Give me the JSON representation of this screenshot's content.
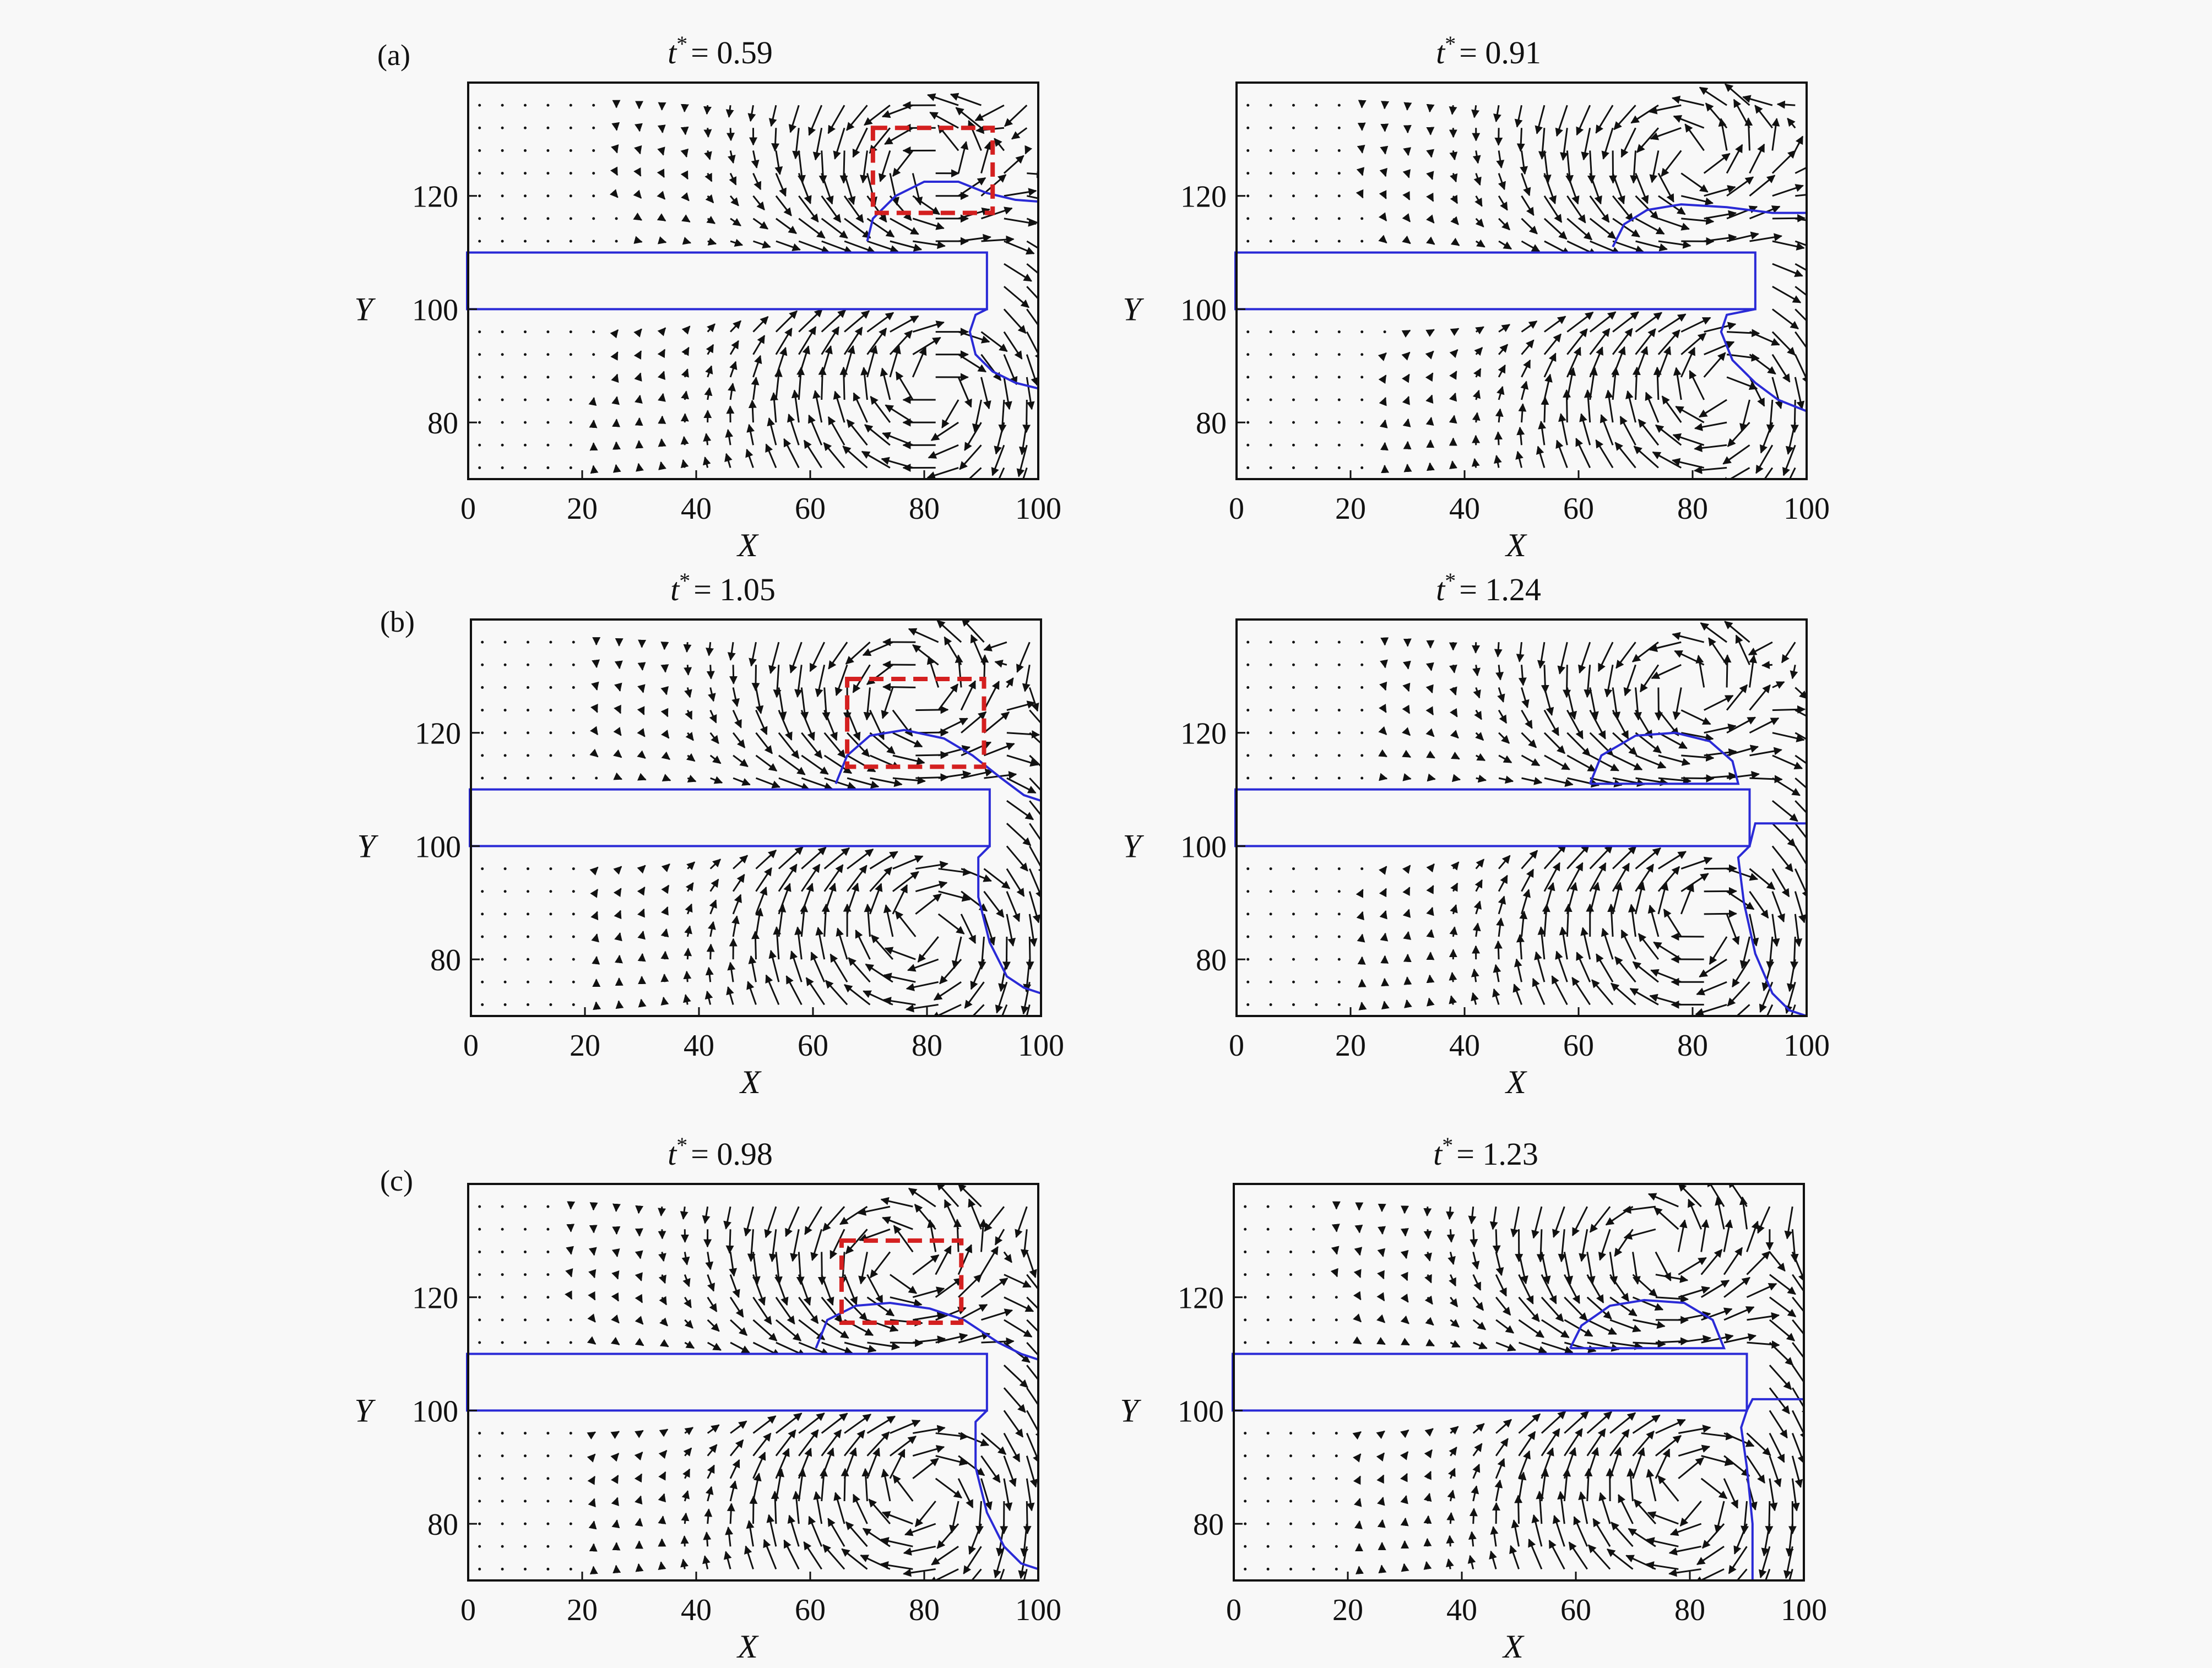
{
  "figure": {
    "panel_labels": [
      "(a)",
      "(b)",
      "(c)"
    ]
  },
  "colors": {
    "interface": "#2a2ad6",
    "vectors": "#111111",
    "highlight_box": "#d42020",
    "frame": "#111111",
    "background": "#f8f8f8"
  },
  "chart_data": [
    {
      "type": "vector-field",
      "row_label": "(a)",
      "title": "t* = 0.59",
      "title_parts": {
        "var": "t",
        "sup": "*",
        "value": "= 0.59"
      },
      "xlabel": "X",
      "ylabel": "Y",
      "xlim": [
        0,
        100
      ],
      "ylim": [
        70,
        140
      ],
      "xticks": [
        0,
        20,
        40,
        60,
        80,
        100
      ],
      "yticks": [
        80,
        100,
        120
      ],
      "plate": {
        "x": [
          0,
          91
        ],
        "y": [
          100,
          110
        ]
      },
      "droplet": [
        [
          70,
          112
        ],
        [
          71,
          116
        ],
        [
          75,
          120
        ],
        [
          80,
          122.5
        ],
        [
          86,
          122.5
        ],
        [
          91,
          120.5
        ],
        [
          96,
          119.3
        ],
        [
          100,
          119
        ]
      ],
      "lower_interface": [
        [
          91,
          100
        ],
        [
          89,
          99
        ],
        [
          88,
          96
        ],
        [
          89,
          92
        ],
        [
          92,
          89
        ],
        [
          96,
          87
        ],
        [
          100,
          86
        ]
      ],
      "highlight_box": {
        "x": [
          71,
          92
        ],
        "y": [
          117,
          132
        ]
      },
      "vortices": [
        {
          "x": 82,
          "y": 87,
          "strength": 1.2,
          "dir": -1
        },
        {
          "x": 82,
          "y": 124,
          "strength": 1.0,
          "dir": 1
        }
      ],
      "jet": {
        "x": 96,
        "strength": 1.6
      }
    },
    {
      "type": "vector-field",
      "row_label": "",
      "title": "t* = 0.91",
      "title_parts": {
        "var": "t",
        "sup": "*",
        "value": "= 0.91"
      },
      "xlabel": "X",
      "ylabel": "Y",
      "xlim": [
        0,
        100
      ],
      "ylim": [
        70,
        140
      ],
      "xticks": [
        0,
        20,
        40,
        60,
        80,
        100
      ],
      "yticks": [
        80,
        100,
        120
      ],
      "plate": {
        "x": [
          0,
          91
        ],
        "y": [
          100,
          110
        ]
      },
      "droplet": [
        [
          66,
          111
        ],
        [
          68,
          115
        ],
        [
          72,
          117.5
        ],
        [
          78,
          118.5
        ],
        [
          86,
          118
        ],
        [
          94,
          117
        ],
        [
          100,
          117
        ]
      ],
      "lower_interface": [
        [
          91,
          100
        ],
        [
          86,
          99
        ],
        [
          85,
          96
        ],
        [
          87,
          91
        ],
        [
          91,
          87
        ],
        [
          95,
          84
        ],
        [
          100,
          82
        ]
      ],
      "highlight_box": null,
      "vortices": [
        {
          "x": 85,
          "y": 86,
          "strength": 1.2,
          "dir": -1
        },
        {
          "x": 80,
          "y": 126,
          "strength": 1.1,
          "dir": 1
        }
      ],
      "jet": {
        "x": 96,
        "strength": 1.2
      }
    },
    {
      "type": "vector-field",
      "row_label": "(b)",
      "title": "t* = 1.05",
      "title_parts": {
        "var": "t",
        "sup": "*",
        "value": "= 1.05"
      },
      "xlabel": "X",
      "ylabel": "Y",
      "xlim": [
        0,
        100
      ],
      "ylim": [
        70,
        140
      ],
      "xticks": [
        0,
        20,
        40,
        60,
        80,
        100
      ],
      "yticks": [
        80,
        100,
        120
      ],
      "plate": {
        "x": [
          0,
          91
        ],
        "y": [
          100,
          110
        ]
      },
      "droplet": [
        [
          64,
          111
        ],
        [
          66,
          116
        ],
        [
          70,
          119.5
        ],
        [
          76,
          120.5
        ],
        [
          83,
          119
        ],
        [
          88,
          116
        ],
        [
          93,
          112
        ],
        [
          97,
          109
        ],
        [
          100,
          108
        ]
      ],
      "lower_interface": [
        [
          91,
          100
        ],
        [
          89,
          98
        ],
        [
          89,
          91
        ],
        [
          91,
          83
        ],
        [
          94,
          77
        ],
        [
          97,
          75
        ],
        [
          100,
          74
        ]
      ],
      "highlight_box": {
        "x": [
          66,
          90
        ],
        "y": [
          114,
          129.5
        ]
      },
      "vortices": [
        {
          "x": 80,
          "y": 86,
          "strength": 1.3,
          "dir": -1
        },
        {
          "x": 78,
          "y": 126,
          "strength": 1.1,
          "dir": 1
        }
      ],
      "jet": {
        "x": 97,
        "strength": 1.8
      }
    },
    {
      "type": "vector-field",
      "row_label": "",
      "title": "t* = 1.24",
      "title_parts": {
        "var": "t",
        "sup": "*",
        "value": "= 1.24"
      },
      "xlabel": "X",
      "ylabel": "Y",
      "xlim": [
        0,
        100
      ],
      "ylim": [
        70,
        140
      ],
      "xticks": [
        0,
        20,
        40,
        60,
        80,
        100
      ],
      "yticks": [
        80,
        100,
        120
      ],
      "plate": {
        "x": [
          0,
          90
        ],
        "y": [
          100,
          110
        ]
      },
      "droplet": [
        [
          62,
          111
        ],
        [
          64,
          116
        ],
        [
          70,
          119.5
        ],
        [
          77,
          120
        ],
        [
          83,
          118.5
        ],
        [
          87,
          115
        ],
        [
          88,
          111
        ],
        [
          62,
          111
        ]
      ],
      "lower_interface": [
        [
          90,
          100
        ],
        [
          88,
          98
        ],
        [
          89,
          90
        ],
        [
          91,
          81
        ],
        [
          94,
          74
        ],
        [
          97,
          71
        ],
        [
          100,
          70
        ]
      ],
      "upper_interface": [
        [
          90,
          100
        ],
        [
          91,
          104
        ],
        [
          95,
          104
        ],
        [
          100,
          104
        ]
      ],
      "highlight_box": null,
      "vortices": [
        {
          "x": 82,
          "y": 87,
          "strength": 1.3,
          "dir": -1
        },
        {
          "x": 80,
          "y": 127,
          "strength": 1.0,
          "dir": 1
        }
      ],
      "jet": {
        "x": 96,
        "strength": 1.7
      }
    },
    {
      "type": "vector-field",
      "row_label": "(c)",
      "title": "t* = 0.98",
      "title_parts": {
        "var": "t",
        "sup": "*",
        "value": "= 0.98"
      },
      "xlabel": "X",
      "ylabel": "Y",
      "xlim": [
        0,
        100
      ],
      "ylim": [
        70,
        140
      ],
      "xticks": [
        0,
        20,
        40,
        60,
        80,
        100
      ],
      "yticks": [
        80,
        100,
        120
      ],
      "plate": {
        "x": [
          0,
          91
        ],
        "y": [
          100,
          110
        ]
      },
      "droplet": [
        [
          61,
          111
        ],
        [
          63,
          116
        ],
        [
          68,
          118.5
        ],
        [
          74,
          119
        ],
        [
          81,
          118
        ],
        [
          87,
          116
        ],
        [
          93,
          112
        ],
        [
          97,
          110
        ],
        [
          100,
          109
        ]
      ],
      "lower_interface": [
        [
          91,
          100
        ],
        [
          89,
          98
        ],
        [
          89,
          90
        ],
        [
          91,
          82
        ],
        [
          94,
          76
        ],
        [
          97,
          73
        ],
        [
          100,
          72
        ]
      ],
      "highlight_box": {
        "x": [
          65.5,
          86.5
        ],
        "y": [
          115.5,
          130
        ]
      },
      "vortices": [
        {
          "x": 80,
          "y": 86,
          "strength": 1.3,
          "dir": -1
        },
        {
          "x": 76,
          "y": 126,
          "strength": 1.2,
          "dir": 1
        }
      ],
      "jet": {
        "x": 96,
        "strength": 2.0
      }
    },
    {
      "type": "vector-field",
      "row_label": "",
      "title": "t* = 1.23",
      "title_parts": {
        "var": "t",
        "sup": "*",
        "value": "= 1.23"
      },
      "xlabel": "X",
      "ylabel": "Y",
      "xlim": [
        0,
        100
      ],
      "ylim": [
        70,
        140
      ],
      "xticks": [
        0,
        20,
        40,
        60,
        80,
        100
      ],
      "yticks": [
        80,
        100,
        120
      ],
      "plate": {
        "x": [
          0,
          90
        ],
        "y": [
          100,
          110
        ]
      },
      "droplet": [
        [
          59,
          111
        ],
        [
          61,
          115
        ],
        [
          66,
          118.5
        ],
        [
          72,
          119.5
        ],
        [
          79,
          119
        ],
        [
          84,
          116
        ],
        [
          86,
          111
        ],
        [
          59,
          111
        ]
      ],
      "lower_interface": [
        [
          90,
          100
        ],
        [
          89,
          97
        ],
        [
          90,
          90
        ],
        [
          91,
          80
        ],
        [
          91,
          70
        ]
      ],
      "upper_interface": [
        [
          90,
          100
        ],
        [
          91,
          102
        ],
        [
          95,
          102
        ],
        [
          100,
          102
        ]
      ],
      "highlight_box": null,
      "vortices": [
        {
          "x": 80,
          "y": 86,
          "strength": 1.3,
          "dir": -1
        },
        {
          "x": 75,
          "y": 128,
          "strength": 1.1,
          "dir": 1
        }
      ],
      "jet": {
        "x": 96,
        "strength": 2.0
      }
    }
  ]
}
